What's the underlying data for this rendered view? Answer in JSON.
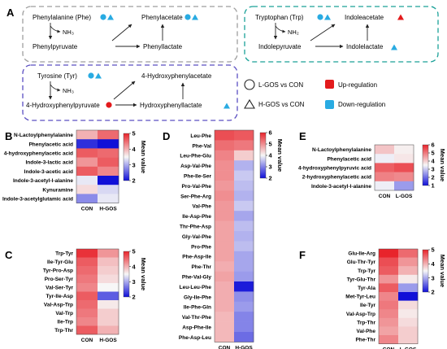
{
  "panel_labels": {
    "A": "A",
    "B": "B",
    "C": "C",
    "D": "D",
    "E": "E",
    "F": "F"
  },
  "pathways": {
    "phe": {
      "substrate": "Phenylalanine (Phe)",
      "intermediate": "Phenylpyruvate",
      "product1": "Phenylacetate",
      "product2": "Phenyllactate",
      "byproduct": "NH₃"
    },
    "trp": {
      "substrate": "Tryptophan (Trp)",
      "intermediate": "Indolepyruvate",
      "product1": "Indoleacetate",
      "product2": "Indolelactate",
      "byproduct": "NH₂"
    },
    "tyr": {
      "substrate": "Tyrosine (Tyr)",
      "intermediate": "4-Hydroxyphenylpyruvate",
      "product1": "4-Hydroxyphenylacetate",
      "product2": "Hydroxyphenyllactate",
      "byproduct": "NH₃"
    }
  },
  "legend": {
    "lgos": "L-GOS vs CON",
    "hgos": "H-GOS vs CON",
    "up": "Up-regulation",
    "down": "Down-regulation"
  },
  "colors": {
    "up": "#e31a1c",
    "down": "#29abe2",
    "phe_box": "#9e9e9e",
    "trp_box": "#1aa198",
    "tyr_box": "#5b4fc2"
  },
  "colorbar_title": "Mean value",
  "chart_data": [
    {
      "type": "heatmap",
      "panel": "B",
      "rows": [
        "N-Lactoylphenylalanine",
        "Phenylacetic acid",
        "4-hydroxyphenylacetic acid",
        "Indole-3-lactic acid",
        "Indole-3-acetic acid",
        "Indole-3-acetyl-l-alanine",
        "Kynuramine",
        "Indole-3-acetylglutamic acid"
      ],
      "columns": [
        "CON",
        "H-GOS"
      ],
      "values": [
        [
          4.0,
          4.5
        ],
        [
          2.2,
          2.0
        ],
        [
          4.6,
          4.5
        ],
        [
          4.2,
          4.6
        ],
        [
          4.6,
          4.3
        ],
        [
          3.4,
          2.0
        ],
        [
          3.7,
          3.3
        ],
        [
          2.8,
          3.4
        ]
      ],
      "colorbar_ticks": [
        "5",
        "4",
        "3",
        "2"
      ],
      "range": [
        2,
        5
      ]
    },
    {
      "type": "heatmap",
      "panel": "C",
      "rows": [
        "Trp-Tyr",
        "Ile-Tyr-Glu",
        "Tyr-Pro-Asp",
        "Pro-Ser-Tyr",
        "Val-Ser-Tyr",
        "Tyr-Ile-Asp",
        "Val-Asp-Trp",
        "Val-Trp",
        "Ile-Trp",
        "Trp-Thr"
      ],
      "columns": [
        "CON",
        "H-GOS"
      ],
      "values": [
        [
          4.9,
          4.2
        ],
        [
          4.6,
          3.9
        ],
        [
          4.5,
          3.8
        ],
        [
          4.4,
          3.7
        ],
        [
          4.3,
          3.5
        ],
        [
          4.6,
          2.5
        ],
        [
          4.5,
          3.6
        ],
        [
          4.4,
          3.8
        ],
        [
          4.3,
          3.8
        ],
        [
          4.6,
          4.0
        ]
      ],
      "colorbar_ticks": [
        "5",
        "4",
        "3",
        "2"
      ],
      "range": [
        2,
        5
      ]
    },
    {
      "type": "heatmap",
      "panel": "D",
      "rows": [
        "Leu-Phe",
        "Phe-Val",
        "Leu-Phe-Glu",
        "Asp-Val-Phe",
        "Phe-Ile-Ser",
        "Pro-Val-Phe",
        "Ser-Phe-Arg",
        "Val-Phe",
        "Ile-Asp-Phe",
        "Thr-Phe-Asp",
        "Gly-Val-Phe",
        "Pro-Phe",
        "Phe-Asp-Ile",
        "Phe-Thr",
        "Phe-Val-Gly",
        "Leu-Leu-Phe",
        "Gly-Ile-Phe",
        "Ile-Phe-Gln",
        "Val-Thr-Phe",
        "Asp-Phe-Ile",
        "Phe-Asp-Leu"
      ],
      "columns": [
        "CON",
        "H-GOS"
      ],
      "values": [
        [
          5.6,
          5.5
        ],
        [
          5.3,
          5.2
        ],
        [
          5.1,
          4.4
        ],
        [
          5.0,
          3.4
        ],
        [
          5.0,
          3.6
        ],
        [
          4.9,
          3.5
        ],
        [
          5.0,
          3.4
        ],
        [
          4.9,
          3.6
        ],
        [
          4.9,
          3.3
        ],
        [
          4.8,
          3.5
        ],
        [
          4.8,
          3.4
        ],
        [
          4.8,
          3.5
        ],
        [
          4.8,
          3.3
        ],
        [
          4.7,
          3.3
        ],
        [
          4.8,
          3.2
        ],
        [
          4.7,
          2.1
        ],
        [
          4.7,
          3.1
        ],
        [
          4.7,
          3.2
        ],
        [
          4.6,
          3.0
        ],
        [
          4.6,
          3.0
        ],
        [
          4.6,
          2.8
        ]
      ],
      "colorbar_ticks": [
        "6",
        "5",
        "4",
        "3",
        "2"
      ],
      "range": [
        2,
        6
      ]
    },
    {
      "type": "heatmap",
      "panel": "E",
      "rows": [
        "N-Lactoylphenylalanine",
        "Phenylacetic acid",
        "4-hydroxyphenylpyruvic acid",
        "2-hydroxyphenylacetic acid",
        "Indole-3-acetyl-l-alanine"
      ],
      "columns": [
        "CON",
        "L-GOS"
      ],
      "values": [
        [
          4.1,
          3.6
        ],
        [
          3.4,
          3.7
        ],
        [
          5.3,
          5.5
        ],
        [
          4.9,
          4.8
        ],
        [
          3.4,
          2.5
        ]
      ],
      "colorbar_ticks": [
        "6",
        "5",
        "4",
        "3",
        "2",
        "1"
      ],
      "range": [
        1,
        6
      ]
    },
    {
      "type": "heatmap",
      "panel": "F",
      "rows": [
        "Glu-Ile-Arg",
        "Glu-Thr-Tyr",
        "Trp-Tyr",
        "Tyr-Glu-Thr",
        "Tyr-Ala",
        "Met-Tyr-Leu",
        "Ile-Tyr",
        "Val-Asp-Trp",
        "Trp-Thr",
        "Val-Phe",
        "Phe-Thr"
      ],
      "columns": [
        "CON",
        "L-GOS"
      ],
      "values": [
        [
          5.0,
          4.5
        ],
        [
          4.7,
          4.2
        ],
        [
          4.6,
          4.0
        ],
        [
          4.2,
          3.6
        ],
        [
          4.6,
          2.9
        ],
        [
          4.3,
          2.0
        ],
        [
          4.4,
          3.7
        ],
        [
          4.3,
          3.6
        ],
        [
          4.2,
          3.7
        ],
        [
          4.1,
          3.8
        ],
        [
          4.3,
          3.8
        ]
      ],
      "colorbar_ticks": [
        "5",
        "4",
        "3",
        "2"
      ],
      "range": [
        2,
        5
      ]
    }
  ]
}
